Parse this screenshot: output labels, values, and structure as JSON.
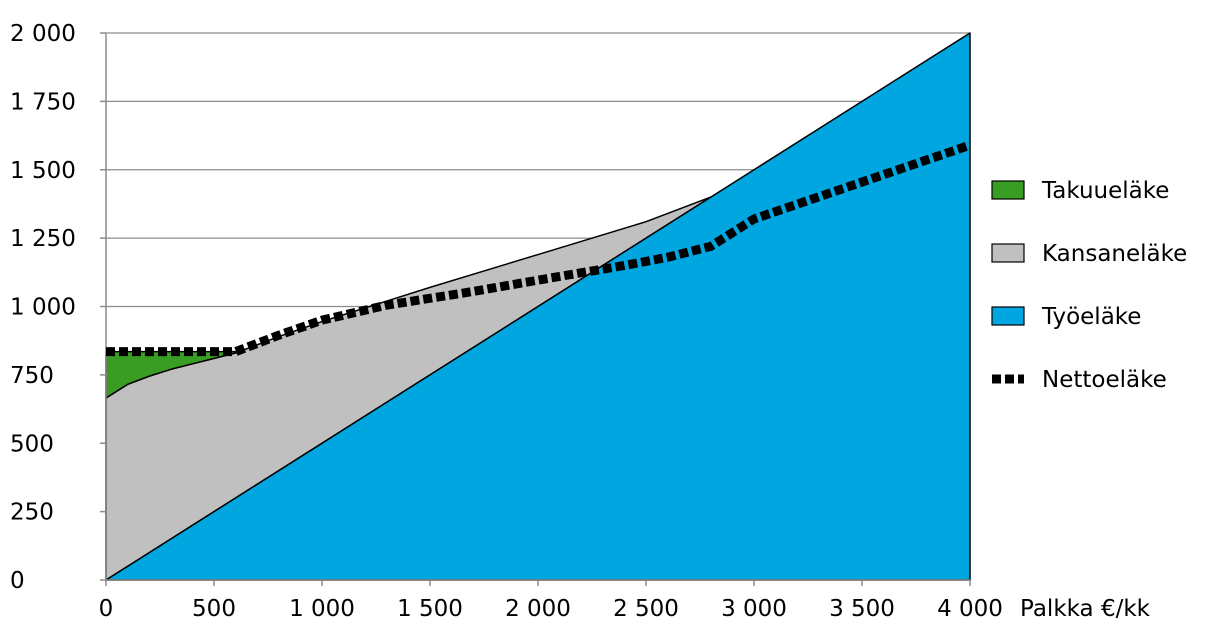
{
  "chart_data": {
    "type": "area",
    "xlabel": "Palkka €/kk",
    "ylabel": "",
    "xlim": [
      0,
      4000
    ],
    "ylim": [
      0,
      2000
    ],
    "x_ticks": [
      0,
      500,
      1000,
      1500,
      2000,
      2500,
      3000,
      3500,
      4000
    ],
    "x_tick_labels": [
      "0",
      "500",
      "1 000",
      "1 500",
      "2 000",
      "2 500",
      "3 000",
      "3 500",
      "4 000"
    ],
    "y_ticks": [
      0,
      250,
      500,
      750,
      1000,
      1250,
      1500,
      1750,
      2000
    ],
    "y_tick_labels": [
      "0",
      "250",
      "500",
      "750",
      "1 000",
      "1 250",
      "1 500",
      "1 750",
      "2 000"
    ],
    "grid": "horizontal",
    "legend_position": "right",
    "series": [
      {
        "name": "Takuueläke",
        "kind": "area",
        "color": "#3a9d23",
        "x": [
          0,
          100,
          200,
          300,
          400,
          500,
          600
        ],
        "lower": [
          665,
          715,
          745,
          770,
          790,
          810,
          830
        ],
        "upper": [
          835,
          835,
          835,
          835,
          835,
          835,
          835
        ]
      },
      {
        "name": "Kansaneläke",
        "kind": "area",
        "color": "#c0c0c0",
        "x": [
          0,
          100,
          200,
          300,
          400,
          500,
          600,
          700,
          800,
          1000,
          1200,
          1500,
          2000,
          2500,
          2800
        ],
        "lower": [
          0,
          50,
          100,
          150,
          200,
          250,
          300,
          350,
          400,
          500,
          600,
          750,
          1000,
          1250,
          1400
        ],
        "upper": [
          665,
          715,
          745,
          770,
          790,
          810,
          830,
          860,
          890,
          945,
          995,
          1070,
          1190,
          1310,
          1400
        ]
      },
      {
        "name": "Työeläke",
        "kind": "area",
        "color": "#00a6e0",
        "x": [
          0,
          1000,
          2000,
          3000,
          4000
        ],
        "values": [
          0,
          500,
          1000,
          1500,
          2000
        ]
      },
      {
        "name": "Nettoeläke",
        "kind": "line",
        "color": "#000000",
        "x": [
          0,
          300,
          600,
          800,
          1000,
          1300,
          1700,
          2100,
          2400,
          2600,
          2800,
          3000,
          3500,
          4000
        ],
        "values": [
          835,
          835,
          835,
          895,
          950,
          1005,
          1055,
          1110,
          1150,
          1180,
          1220,
          1320,
          1455,
          1590
        ]
      }
    ]
  }
}
